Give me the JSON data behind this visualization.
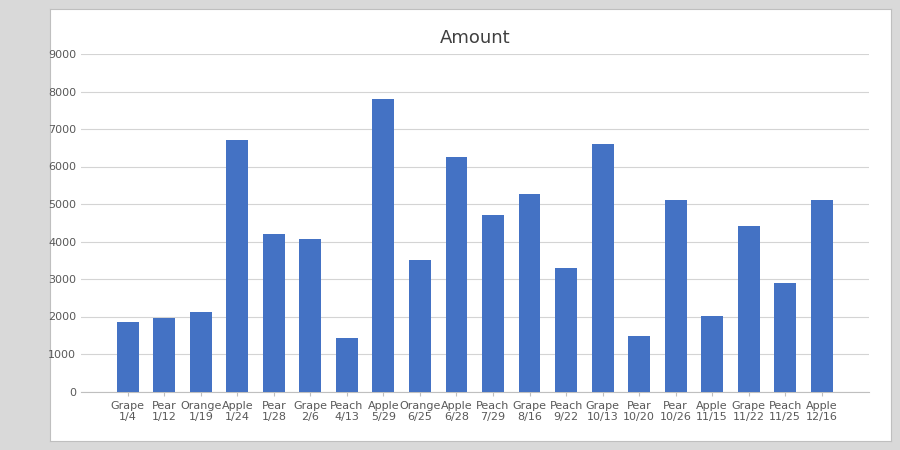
{
  "title": "Amount",
  "categories": [
    [
      "Grape",
      "1/4"
    ],
    [
      "Pear",
      "1/12"
    ],
    [
      "Orange",
      "1/19"
    ],
    [
      "Apple",
      "1/24"
    ],
    [
      "Pear",
      "1/28"
    ],
    [
      "Grape",
      "2/6"
    ],
    [
      "Peach",
      "4/13"
    ],
    [
      "Apple",
      "5/29"
    ],
    [
      "Orange",
      "6/25"
    ],
    [
      "Apple",
      "6/28"
    ],
    [
      "Peach",
      "7/29"
    ],
    [
      "Grape",
      "8/16"
    ],
    [
      "Peach",
      "9/22"
    ],
    [
      "Grape",
      "10/13"
    ],
    [
      "Pear",
      "10/20"
    ],
    [
      "Pear",
      "10/26"
    ],
    [
      "Apple",
      "11/15"
    ],
    [
      "Grape",
      "11/22"
    ],
    [
      "Peach",
      "11/25"
    ],
    [
      "Apple",
      "12/16"
    ]
  ],
  "values": [
    1850,
    1970,
    2110,
    6700,
    4200,
    4080,
    1430,
    7800,
    3500,
    6250,
    4700,
    5270,
    3300,
    6600,
    1470,
    5100,
    2020,
    4420,
    2890,
    5100
  ],
  "bar_color": "#4472C4",
  "ylim": [
    0,
    9000
  ],
  "yticks": [
    0,
    1000,
    2000,
    3000,
    4000,
    5000,
    6000,
    7000,
    8000,
    9000
  ],
  "outer_bg": "#d9d9d9",
  "inner_bg": "#ffffff",
  "plot_area_color": "#ffffff",
  "grid_color": "#d4d4d4",
  "title_fontsize": 13,
  "tick_fontsize": 8,
  "label_fontsize": 8,
  "title_color": "#404040",
  "tick_color": "#595959"
}
